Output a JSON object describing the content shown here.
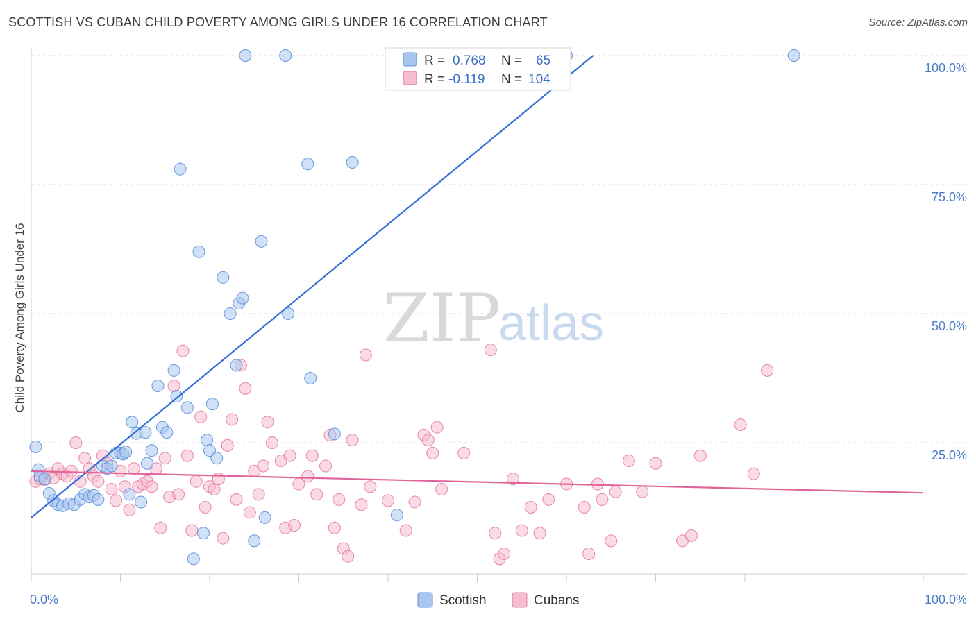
{
  "header": {
    "title": "SCOTTISH VS CUBAN CHILD POVERTY AMONG GIRLS UNDER 16 CORRELATION CHART",
    "source": "Source: ZipAtlas.com"
  },
  "watermark": {
    "zip": "ZIP",
    "atlas": "atlas"
  },
  "legend": {
    "rows": [
      {
        "r_label": "R =",
        "r_value": "0.768",
        "n_label": "N =",
        "n_value": "65",
        "color": "#a8c6f0",
        "stroke": "#5b8fd8"
      },
      {
        "r_label": "R =",
        "r_value": "-0.119",
        "n_label": "N =",
        "n_value": "104",
        "color": "#f6bcd0",
        "stroke": "#e57aa0"
      }
    ]
  },
  "bottom_legend": {
    "scottish": "Scottish",
    "cubans": "Cubans"
  },
  "chart_data": {
    "type": "scatter",
    "title": "SCOTTISH VS CUBAN CHILD POVERTY AMONG GIRLS UNDER 16 CORRELATION CHART",
    "xlabel": "",
    "ylabel": "Child Poverty Among Girls Under 16",
    "xlim": [
      0,
      100
    ],
    "ylim": [
      0,
      100
    ],
    "x_tick_labels": [
      "0.0%",
      "100.0%"
    ],
    "y_ticks": [
      {
        "value": 25,
        "label": "25.0%"
      },
      {
        "value": 50,
        "label": "50.0%"
      },
      {
        "value": 75,
        "label": "75.0%"
      },
      {
        "value": 100,
        "label": "100.0%"
      }
    ],
    "grid": "horizontal dashed",
    "series": [
      {
        "name": "Scottish",
        "color": "#a8c6f0",
        "stroke": "#5b8fd8",
        "trend": {
          "x": [
            0,
            63
          ],
          "y": [
            10.5,
            100
          ]
        },
        "trend_color": "#2f6fd6",
        "points": [
          [
            0.5,
            24.2
          ],
          [
            0.8,
            19.8
          ],
          [
            1.0,
            18.5
          ],
          [
            1.5,
            18.0
          ],
          [
            2.0,
            15.2
          ],
          [
            2.5,
            13.8
          ],
          [
            3.0,
            13.0
          ],
          [
            3.5,
            12.8
          ],
          [
            4.2,
            13.2
          ],
          [
            4.8,
            13.0
          ],
          [
            5.5,
            14.0
          ],
          [
            6.0,
            15.0
          ],
          [
            6.5,
            14.5
          ],
          [
            7.0,
            14.8
          ],
          [
            7.5,
            14.0
          ],
          [
            8.0,
            20.5
          ],
          [
            8.5,
            20.0
          ],
          [
            9.0,
            20.5
          ],
          [
            9.5,
            23.0
          ],
          [
            10.0,
            23.0
          ],
          [
            10.3,
            22.8
          ],
          [
            10.6,
            23.2
          ],
          [
            11.0,
            15.0
          ],
          [
            11.3,
            29.0
          ],
          [
            11.8,
            26.8
          ],
          [
            12.3,
            13.5
          ],
          [
            12.8,
            27.0
          ],
          [
            13.0,
            21.0
          ],
          [
            13.5,
            23.5
          ],
          [
            14.2,
            36.0
          ],
          [
            14.7,
            28.0
          ],
          [
            15.2,
            27.0
          ],
          [
            16.0,
            39.0
          ],
          [
            16.3,
            34.0
          ],
          [
            16.7,
            78.0
          ],
          [
            17.5,
            31.8
          ],
          [
            18.2,
            2.5
          ],
          [
            18.8,
            62.0
          ],
          [
            19.3,
            7.5
          ],
          [
            19.7,
            25.5
          ],
          [
            20.0,
            23.5
          ],
          [
            20.3,
            32.5
          ],
          [
            20.8,
            22.0
          ],
          [
            21.5,
            57.0
          ],
          [
            22.3,
            50.0
          ],
          [
            23.0,
            40.0
          ],
          [
            23.3,
            52.0
          ],
          [
            23.7,
            53.0
          ],
          [
            24.0,
            100
          ],
          [
            25.0,
            6.0
          ],
          [
            25.8,
            64.0
          ],
          [
            26.2,
            10.5
          ],
          [
            28.5,
            100
          ],
          [
            28.8,
            50.0
          ],
          [
            31.0,
            79.0
          ],
          [
            31.3,
            37.5
          ],
          [
            34.0,
            26.7
          ],
          [
            36.0,
            79.3
          ],
          [
            41.0,
            11.0
          ],
          [
            46.5,
            100
          ],
          [
            47.0,
            100
          ],
          [
            48.0,
            100
          ],
          [
            51.0,
            100
          ],
          [
            85.5,
            100
          ],
          [
            60.0,
            100
          ]
        ]
      },
      {
        "name": "Cubans",
        "color": "#f6bcd0",
        "stroke": "#e57aa0",
        "trend": {
          "x": [
            0,
            100
          ],
          "y": [
            19.5,
            15.3
          ]
        },
        "trend_color": "#e0649a",
        "points": [
          [
            0.5,
            17.5
          ],
          [
            1.0,
            18.0
          ],
          [
            1.5,
            17.8
          ],
          [
            2.0,
            19.0
          ],
          [
            2.5,
            18.2
          ],
          [
            3.0,
            20.0
          ],
          [
            3.5,
            19.0
          ],
          [
            4.0,
            18.5
          ],
          [
            4.5,
            19.5
          ],
          [
            5.0,
            25.0
          ],
          [
            5.5,
            17.5
          ],
          [
            6.0,
            22.0
          ],
          [
            6.5,
            20.0
          ],
          [
            7.0,
            18.5
          ],
          [
            7.5,
            17.5
          ],
          [
            8.0,
            22.5
          ],
          [
            8.5,
            21.0
          ],
          [
            9.0,
            16.0
          ],
          [
            9.5,
            13.8
          ],
          [
            10.0,
            19.5
          ],
          [
            10.5,
            16.5
          ],
          [
            11.0,
            12.0
          ],
          [
            11.5,
            20.0
          ],
          [
            12.0,
            16.5
          ],
          [
            12.5,
            17.0
          ],
          [
            13.0,
            17.5
          ],
          [
            13.5,
            16.5
          ],
          [
            14.0,
            20.0
          ],
          [
            14.5,
            8.5
          ],
          [
            15.0,
            22.0
          ],
          [
            15.5,
            14.5
          ],
          [
            16.0,
            36.0
          ],
          [
            16.5,
            15.0
          ],
          [
            17.0,
            42.8
          ],
          [
            17.5,
            22.5
          ],
          [
            18.0,
            8.0
          ],
          [
            18.5,
            17.5
          ],
          [
            19.0,
            30.0
          ],
          [
            19.5,
            12.5
          ],
          [
            20.0,
            16.5
          ],
          [
            20.5,
            16.0
          ],
          [
            21.0,
            18.0
          ],
          [
            21.5,
            6.5
          ],
          [
            22.0,
            24.5
          ],
          [
            22.5,
            29.5
          ],
          [
            23.0,
            14.0
          ],
          [
            23.5,
            40.0
          ],
          [
            24.0,
            35.5
          ],
          [
            24.5,
            11.5
          ],
          [
            25.0,
            19.5
          ],
          [
            25.5,
            15.0
          ],
          [
            26.0,
            20.5
          ],
          [
            26.5,
            29.0
          ],
          [
            27.0,
            25.0
          ],
          [
            28.0,
            21.5
          ],
          [
            28.5,
            8.5
          ],
          [
            29.0,
            22.5
          ],
          [
            29.5,
            9.0
          ],
          [
            30.0,
            17.0
          ],
          [
            31.0,
            18.5
          ],
          [
            31.5,
            22.5
          ],
          [
            32.0,
            15.0
          ],
          [
            33.0,
            20.5
          ],
          [
            33.5,
            26.5
          ],
          [
            34.0,
            8.5
          ],
          [
            34.5,
            14.0
          ],
          [
            35.0,
            4.5
          ],
          [
            35.5,
            3.0
          ],
          [
            36.0,
            25.5
          ],
          [
            37.0,
            13.0
          ],
          [
            37.5,
            42.0
          ],
          [
            38.0,
            16.5
          ],
          [
            40.0,
            13.8
          ],
          [
            42.0,
            8.0
          ],
          [
            43.0,
            13.5
          ],
          [
            44.0,
            26.5
          ],
          [
            44.5,
            25.5
          ],
          [
            45.0,
            23.0
          ],
          [
            45.5,
            28.0
          ],
          [
            46.0,
            16.0
          ],
          [
            48.5,
            23.0
          ],
          [
            51.5,
            43.0
          ],
          [
            52.0,
            7.5
          ],
          [
            52.5,
            2.5
          ],
          [
            53.0,
            3.5
          ],
          [
            54.0,
            18.0
          ],
          [
            55.0,
            8.0
          ],
          [
            56.0,
            12.5
          ],
          [
            57.0,
            7.5
          ],
          [
            58.0,
            14.0
          ],
          [
            60.0,
            17.0
          ],
          [
            62.0,
            12.5
          ],
          [
            62.5,
            3.5
          ],
          [
            63.5,
            17.0
          ],
          [
            64.0,
            14.0
          ],
          [
            65.0,
            6.0
          ],
          [
            67.0,
            21.5
          ],
          [
            68.5,
            15.5
          ],
          [
            70.0,
            21.0
          ],
          [
            73.0,
            6.0
          ],
          [
            74.0,
            7.0
          ],
          [
            75.0,
            22.5
          ],
          [
            79.5,
            28.5
          ],
          [
            81.0,
            19.0
          ],
          [
            82.5,
            39.0
          ],
          [
            65.5,
            15.5
          ]
        ]
      }
    ]
  }
}
